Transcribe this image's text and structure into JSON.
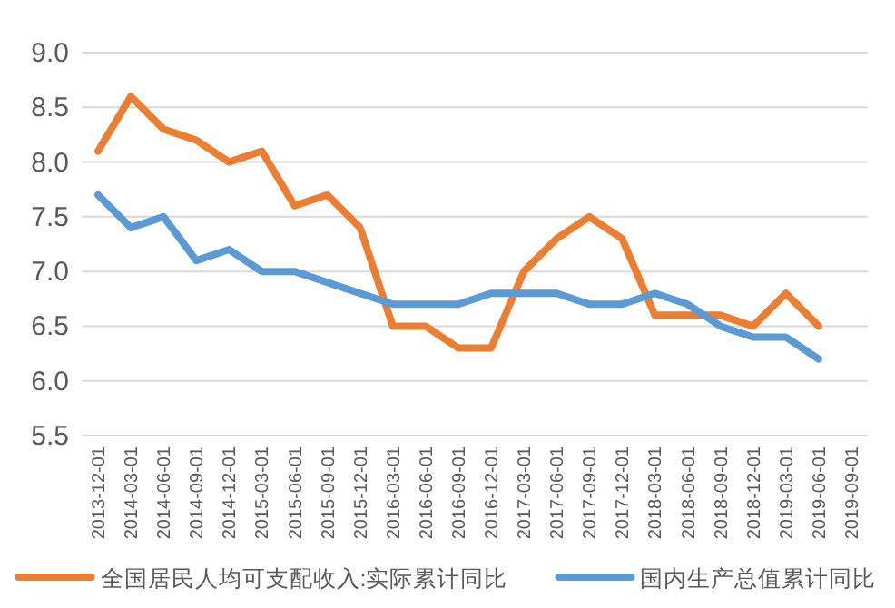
{
  "chart_data": {
    "type": "line",
    "categories": [
      "2013-12-01",
      "2014-03-01",
      "2014-06-01",
      "2014-09-01",
      "2014-12-01",
      "2015-03-01",
      "2015-06-01",
      "2015-09-01",
      "2015-12-01",
      "2016-03-01",
      "2016-06-01",
      "2016-09-01",
      "2016-12-01",
      "2017-03-01",
      "2017-06-01",
      "2017-09-01",
      "2017-12-01",
      "2018-03-01",
      "2018-06-01",
      "2018-09-01",
      "2018-12-01",
      "2019-03-01",
      "2019-06-01",
      "2019-09-01"
    ],
    "series": [
      {
        "name": "全国居民人均可支配收入:实际累计同比",
        "color": "#ed7d31",
        "values": [
          8.1,
          8.6,
          8.3,
          8.2,
          8.0,
          8.1,
          7.6,
          7.7,
          7.4,
          6.5,
          6.5,
          6.3,
          6.3,
          7.0,
          7.3,
          7.5,
          7.3,
          6.6,
          6.6,
          6.6,
          6.5,
          6.8,
          6.5,
          null
        ]
      },
      {
        "name": "国内生产总值累计同比",
        "color": "#5b9bd5",
        "values": [
          7.7,
          7.4,
          7.5,
          7.1,
          7.2,
          7.0,
          7.0,
          6.9,
          6.8,
          6.7,
          6.7,
          6.7,
          6.8,
          6.8,
          6.8,
          6.7,
          6.7,
          6.8,
          6.7,
          6.5,
          6.4,
          6.4,
          6.2,
          null
        ]
      }
    ],
    "ylim": [
      5.5,
      9.0
    ],
    "yticks": [
      {
        "value": 5.5,
        "label": "5.5"
      },
      {
        "value": 6,
        "label": "6.0"
      },
      {
        "value": 6.5,
        "label": "6.5"
      },
      {
        "value": 7,
        "label": "7.0"
      },
      {
        "value": 7.5,
        "label": "7.5"
      },
      {
        "value": 8,
        "label": "8.0"
      },
      {
        "value": 8.5,
        "label": "8.5"
      },
      {
        "value": 9,
        "label": "9.0"
      }
    ],
    "grid": "y",
    "legend": "bottom"
  }
}
